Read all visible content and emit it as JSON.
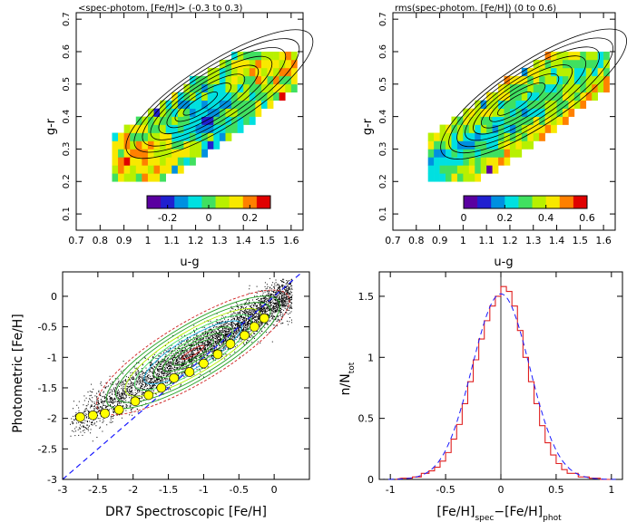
{
  "chart_data": [
    {
      "type": "heatmap",
      "title": "<spec-photom. [Fe/H]> (-0.3 to 0.3)",
      "xlabel": "u-g",
      "ylabel": "g-r",
      "xlim": [
        0.7,
        1.65
      ],
      "ylim": [
        0.05,
        0.72
      ],
      "xticks": [
        "0.7",
        "0.8",
        "0.9",
        "1",
        "1.1",
        "1.2",
        "1.3",
        "1.4",
        "1.5",
        "1.6"
      ],
      "yticks": [
        "0.1",
        "0.2",
        "0.3",
        "0.4",
        "0.5",
        "0.6",
        "0.7"
      ],
      "colorbar": {
        "range": [
          -0.3,
          0.3
        ],
        "ticks": [
          -0.2,
          0,
          0.2
        ],
        "tick_labels": [
          "-0.2",
          "0",
          "0.2"
        ],
        "colors": [
          "#5a00a0",
          "#2020d0",
          "#0090e0",
          "#00e0e0",
          "#40e060",
          "#b8f000",
          "#f8e800",
          "#ff8000",
          "#e00000"
        ]
      },
      "locus": {
        "u_g_range": [
          0.85,
          1.62
        ],
        "g_r_at_min": 0.22,
        "g_r_at_max": 0.58
      },
      "contours": 8,
      "grid": false
    },
    {
      "type": "heatmap",
      "title": "rms(spec-photom. [Fe/H]) (0 to 0.6)",
      "xlabel": "u-g",
      "ylabel": "g-r",
      "xlim": [
        0.7,
        1.65
      ],
      "ylim": [
        0.05,
        0.72
      ],
      "xticks": [
        "0.7",
        "0.8",
        "0.9",
        "1",
        "1.1",
        "1.2",
        "1.3",
        "1.4",
        "1.5",
        "1.6"
      ],
      "yticks": [
        "0.1",
        "0.2",
        "0.3",
        "0.4",
        "0.5",
        "0.6",
        "0.7"
      ],
      "colorbar": {
        "range": [
          0,
          0.6
        ],
        "ticks": [
          0,
          0.2,
          0.4,
          0.6
        ],
        "tick_labels": [
          "0",
          "0.2",
          "0.4",
          "0.6"
        ],
        "colors": [
          "#5a00a0",
          "#2020d0",
          "#0090e0",
          "#00e0e0",
          "#40e060",
          "#b8f000",
          "#f8e800",
          "#ff8000",
          "#e00000"
        ]
      },
      "contours": 8,
      "grid": false
    },
    {
      "type": "scatter",
      "xlabel": "DR7 Spectroscopic [Fe/H]",
      "ylabel": "Photometric [Fe/H]",
      "xlim": [
        -3,
        0.5
      ],
      "ylim": [
        -3,
        0.4
      ],
      "xticks": [
        -3,
        -2.5,
        -2,
        -1.5,
        -1,
        -0.5,
        0
      ],
      "yticks": [
        -3,
        -2.5,
        -2,
        -1.5,
        -1,
        -0.5,
        0
      ],
      "series": [
        {
          "kind": "binned-median",
          "color": "#ffff00",
          "x": [
            -2.75,
            -2.57,
            -2.4,
            -2.2,
            -1.97,
            -1.78,
            -1.6,
            -1.42,
            -1.2,
            -1.0,
            -0.8,
            -0.62,
            -0.42,
            -0.28,
            -0.14
          ],
          "y": [
            -1.98,
            -1.95,
            -1.92,
            -1.86,
            -1.72,
            -1.62,
            -1.5,
            -1.34,
            -1.24,
            -1.1,
            -0.95,
            -0.78,
            -0.64,
            -0.5,
            -0.36
          ]
        }
      ],
      "one_to_one_line": {
        "style": "dashed",
        "color": "#1a1aff"
      },
      "grid": false
    },
    {
      "type": "line",
      "xlabel": "[Fe/H]spec-[Fe/H]phot",
      "ylabel": "n/Ntot",
      "xlim": [
        -1.1,
        1.1
      ],
      "ylim": [
        0,
        1.7
      ],
      "xticks": [
        -1,
        -0.5,
        0,
        0.5,
        1
      ],
      "yticks": [
        0,
        0.5,
        1,
        1.5
      ],
      "series": [
        {
          "kind": "histogram",
          "color": "#e02020",
          "x": [
            -0.9,
            -0.8,
            -0.72,
            -0.65,
            -0.6,
            -0.55,
            -0.5,
            -0.45,
            -0.4,
            -0.35,
            -0.3,
            -0.25,
            -0.2,
            -0.15,
            -0.1,
            -0.05,
            0,
            0.05,
            0.1,
            0.15,
            0.2,
            0.25,
            0.3,
            0.35,
            0.4,
            0.45,
            0.5,
            0.55,
            0.6,
            0.7,
            0.8,
            0.9
          ],
          "y": [
            0.01,
            0.02,
            0.05,
            0.07,
            0.1,
            0.15,
            0.22,
            0.33,
            0.45,
            0.62,
            0.8,
            0.98,
            1.15,
            1.3,
            1.42,
            1.5,
            1.58,
            1.54,
            1.42,
            1.22,
            1.0,
            0.8,
            0.62,
            0.44,
            0.3,
            0.2,
            0.13,
            0.08,
            0.05,
            0.02,
            0.01,
            0.0
          ]
        },
        {
          "kind": "gaussian-fit",
          "color": "#1a1aff",
          "style": "dashed",
          "mean": 0.0,
          "sigma": 0.26,
          "peak": 1.52
        }
      ],
      "zero_line": {
        "x": 0,
        "color": "#000000"
      },
      "grid": false
    }
  ]
}
